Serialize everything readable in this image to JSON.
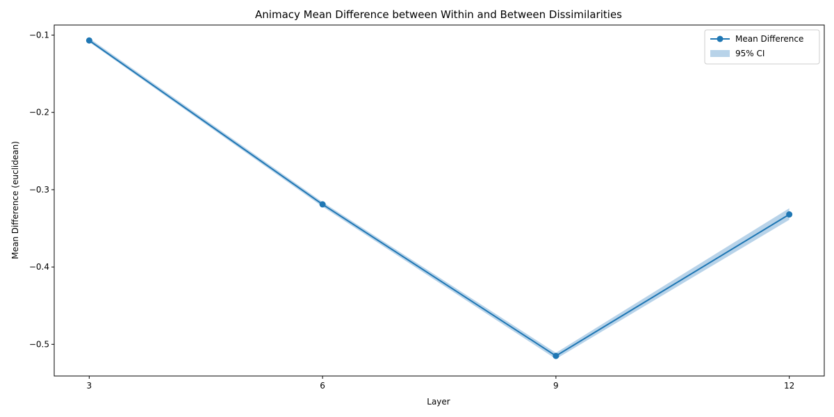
{
  "chart_data": {
    "type": "line",
    "title": "Animacy Mean Difference between Within and Between Dissimilarities",
    "xlabel": "Layer",
    "ylabel": "Mean Difference (euclidean)",
    "x": [
      3,
      6,
      9,
      12
    ],
    "x_ticks": [
      "3",
      "6",
      "9",
      "12"
    ],
    "xlim": [
      2.55,
      12.45
    ],
    "ylim": [
      -0.541,
      -0.087
    ],
    "y_ticks": [
      {
        "value": -0.1,
        "label": "−0.1"
      },
      {
        "value": -0.2,
        "label": "−0.2"
      },
      {
        "value": -0.3,
        "label": "−0.3"
      },
      {
        "value": -0.4,
        "label": "−0.4"
      },
      {
        "value": -0.5,
        "label": "−0.5"
      }
    ],
    "series": [
      {
        "name": "Mean Difference",
        "values": [
          -0.107,
          -0.319,
          -0.515,
          -0.332
        ],
        "ci_lower": [
          -0.109,
          -0.322,
          -0.519,
          -0.339
        ],
        "ci_upper": [
          -0.104,
          -0.316,
          -0.511,
          -0.324
        ],
        "color": "#1f77b4"
      }
    ],
    "ci_label": "95% CI",
    "ci_color": "#a6c8e3",
    "grid": false,
    "legend_position": "top-right"
  }
}
